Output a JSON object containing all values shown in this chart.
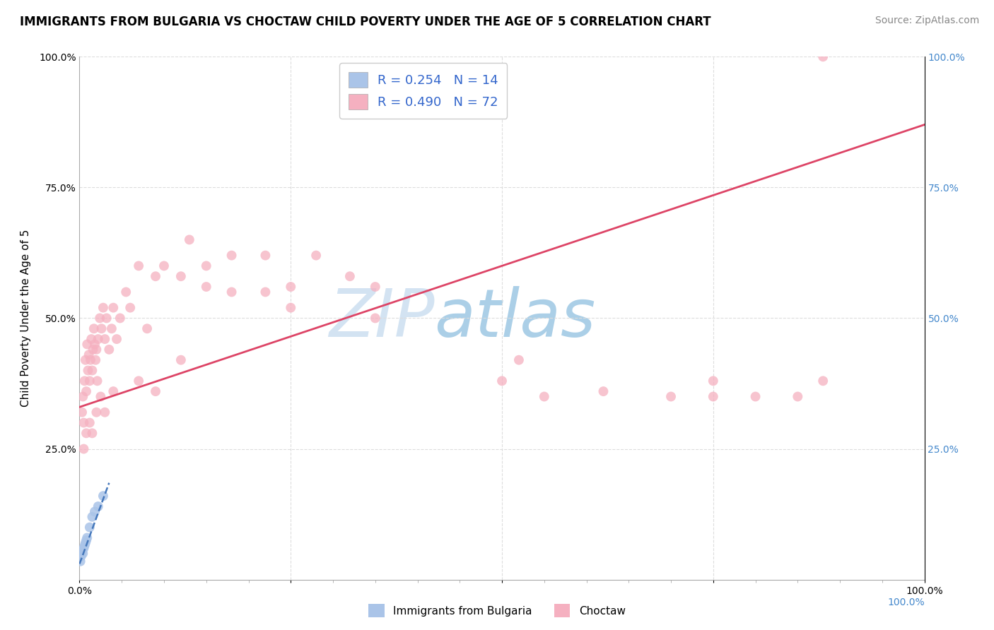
{
  "title": "IMMIGRANTS FROM BULGARIA VS CHOCTAW CHILD POVERTY UNDER THE AGE OF 5 CORRELATION CHART",
  "source": "Source: ZipAtlas.com",
  "ylabel": "Child Poverty Under the Age of 5",
  "xlim": [
    0,
    1
  ],
  "ylim": [
    0,
    1
  ],
  "blue_R": 0.254,
  "blue_N": 14,
  "pink_R": 0.49,
  "pink_N": 72,
  "blue_color": "#aac4e8",
  "pink_color": "#f5b0c0",
  "blue_line_color": "#4477bb",
  "pink_line_color": "#dd4466",
  "grid_color": "#dddddd",
  "watermark_zip_color": "#c8ddf0",
  "watermark_atlas_color": "#b0cce8",
  "legend_label_blue": "Immigrants from Bulgaria",
  "legend_label_pink": "Choctaw",
  "blue_scatter_x": [
    0.001,
    0.002,
    0.003,
    0.004,
    0.005,
    0.006,
    0.007,
    0.008,
    0.009,
    0.012,
    0.015,
    0.018,
    0.022,
    0.028
  ],
  "blue_scatter_y": [
    0.035,
    0.045,
    0.055,
    0.05,
    0.06,
    0.065,
    0.07,
    0.075,
    0.08,
    0.1,
    0.12,
    0.13,
    0.14,
    0.16
  ],
  "pink_scatter_x": [
    0.003,
    0.004,
    0.005,
    0.006,
    0.007,
    0.008,
    0.009,
    0.01,
    0.011,
    0.012,
    0.013,
    0.014,
    0.015,
    0.016,
    0.017,
    0.018,
    0.019,
    0.02,
    0.021,
    0.022,
    0.024,
    0.026,
    0.028,
    0.03,
    0.032,
    0.035,
    0.038,
    0.04,
    0.044,
    0.048,
    0.055,
    0.06,
    0.07,
    0.08,
    0.09,
    0.1,
    0.12,
    0.13,
    0.15,
    0.18,
    0.22,
    0.25,
    0.28,
    0.35,
    0.5,
    0.52,
    0.55,
    0.62,
    0.7,
    0.75,
    0.8,
    0.88
  ],
  "pink_scatter_y": [
    0.32,
    0.35,
    0.3,
    0.38,
    0.42,
    0.36,
    0.45,
    0.4,
    0.43,
    0.38,
    0.42,
    0.46,
    0.4,
    0.44,
    0.48,
    0.45,
    0.42,
    0.44,
    0.38,
    0.46,
    0.5,
    0.48,
    0.52,
    0.46,
    0.5,
    0.44,
    0.48,
    0.52,
    0.46,
    0.5,
    0.55,
    0.52,
    0.6,
    0.48,
    0.58,
    0.6,
    0.42,
    0.65,
    0.56,
    0.62,
    0.55,
    0.52,
    0.62,
    0.5,
    0.38,
    0.42,
    0.35,
    0.36,
    0.35,
    0.38,
    0.35,
    0.38
  ],
  "pink_extra_x": [
    0.005,
    0.008,
    0.012,
    0.015,
    0.02,
    0.025,
    0.03,
    0.04,
    0.07,
    0.09,
    0.12,
    0.15,
    0.18,
    0.22,
    0.25,
    0.32,
    0.35,
    0.75,
    0.85,
    0.88
  ],
  "pink_extra_y": [
    0.25,
    0.28,
    0.3,
    0.28,
    0.32,
    0.35,
    0.32,
    0.36,
    0.38,
    0.36,
    0.58,
    0.6,
    0.55,
    0.62,
    0.56,
    0.58,
    0.56,
    0.35,
    0.35,
    1.0
  ],
  "blue_line_x0": 0.0,
  "blue_line_x1": 0.035,
  "blue_line_y0": 0.03,
  "blue_line_y1": 0.185,
  "pink_line_x0": 0.0,
  "pink_line_x1": 1.0,
  "pink_line_y0": 0.33,
  "pink_line_y1": 0.87,
  "title_fontsize": 12,
  "axis_label_fontsize": 11,
  "tick_fontsize": 10,
  "legend_fontsize": 13,
  "source_fontsize": 10,
  "marker_size": 100
}
